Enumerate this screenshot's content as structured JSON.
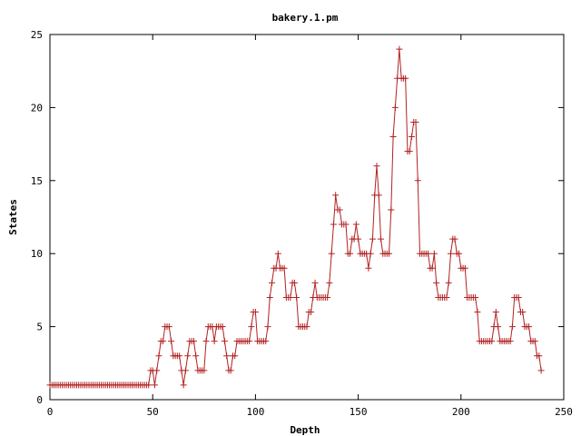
{
  "chart_data": {
    "type": "line",
    "title": "bakery.1.pm",
    "xlabel": "Depth",
    "ylabel": "States",
    "xlim": [
      0,
      250
    ],
    "ylim": [
      0,
      25
    ],
    "xticks": [
      0,
      50,
      100,
      150,
      200,
      250
    ],
    "yticks": [
      0,
      5,
      10,
      15,
      20,
      25
    ],
    "grid": false,
    "legend": "none",
    "marker": "plus",
    "color": "#b22222",
    "series": [
      {
        "x": [
          0,
          1,
          2,
          3,
          4,
          5,
          6,
          7,
          8,
          9,
          10,
          11,
          12,
          13,
          14,
          15,
          16,
          17,
          18,
          19,
          20,
          21,
          22,
          23,
          24,
          25,
          26,
          27,
          28,
          29,
          30,
          31,
          32,
          33,
          34,
          35,
          36,
          37,
          38,
          39,
          40,
          41,
          42,
          43,
          44,
          45,
          46,
          47,
          48,
          49,
          50,
          51,
          52,
          53,
          54,
          55,
          56,
          57,
          58,
          59,
          60,
          61,
          62,
          63,
          64,
          65,
          66,
          67,
          68,
          69,
          70,
          71,
          72,
          73,
          74,
          75,
          76,
          77,
          78,
          79,
          80,
          81,
          82,
          83,
          84,
          85,
          86,
          87,
          88,
          89,
          90,
          91,
          92,
          93,
          94,
          95,
          96,
          97,
          98,
          99,
          100,
          101,
          102,
          103,
          104,
          105,
          106,
          107,
          108,
          109,
          110,
          111,
          112,
          113,
          114,
          115,
          116,
          117,
          118,
          119,
          120,
          121,
          122,
          123,
          124,
          125,
          126,
          127,
          128,
          129,
          130,
          131,
          132,
          133,
          134,
          135,
          136,
          137,
          138,
          139,
          140,
          141,
          142,
          143,
          144,
          145,
          146,
          147,
          148,
          149,
          150,
          151,
          152,
          153,
          154,
          155,
          156,
          157,
          158,
          159,
          160,
          161,
          162,
          163,
          164,
          165,
          166,
          167,
          168,
          169,
          170,
          171,
          172,
          173,
          174,
          175,
          176,
          177,
          178,
          179,
          180,
          181,
          182,
          183,
          184,
          185,
          186,
          187,
          188,
          189,
          190,
          191,
          192,
          193,
          194,
          195,
          196,
          197,
          198,
          199,
          200,
          201,
          202,
          203,
          204,
          205,
          206,
          207,
          208,
          209,
          210,
          211,
          212,
          213,
          214,
          215,
          216,
          217,
          218,
          219,
          220,
          221,
          222,
          223,
          224,
          225,
          226,
          227,
          228,
          229,
          230,
          231,
          232,
          233,
          234,
          235,
          236,
          237,
          238,
          239
        ],
        "values": [
          1,
          1,
          1,
          1,
          1,
          1,
          1,
          1,
          1,
          1,
          1,
          1,
          1,
          1,
          1,
          1,
          1,
          1,
          1,
          1,
          1,
          1,
          1,
          1,
          1,
          1,
          1,
          1,
          1,
          1,
          1,
          1,
          1,
          1,
          1,
          1,
          1,
          1,
          1,
          1,
          1,
          1,
          1,
          1,
          1,
          1,
          1,
          1,
          1,
          2,
          2,
          1,
          2,
          3,
          4,
          4,
          5,
          5,
          5,
          4,
          3,
          3,
          3,
          3,
          2,
          1,
          2,
          3,
          4,
          4,
          4,
          3,
          2,
          2,
          2,
          2,
          4,
          5,
          5,
          5,
          4,
          5,
          5,
          5,
          5,
          4,
          3,
          2,
          2,
          3,
          3,
          4,
          4,
          4,
          4,
          4,
          4,
          4,
          5,
          6,
          6,
          4,
          4,
          4,
          4,
          4,
          5,
          7,
          8,
          9,
          9,
          10,
          9,
          9,
          9,
          7,
          7,
          7,
          8,
          8,
          7,
          5,
          5,
          5,
          5,
          5,
          6,
          6,
          7,
          8,
          7,
          7,
          7,
          7,
          7,
          7,
          8,
          10,
          12,
          14,
          13,
          13,
          12,
          12,
          12,
          10,
          10,
          11,
          11,
          12,
          11,
          10,
          10,
          10,
          10,
          9,
          10,
          11,
          14,
          16,
          14,
          11,
          10,
          10,
          10,
          10,
          13,
          18,
          20,
          22,
          24,
          22,
          22,
          22,
          17,
          17,
          18,
          19,
          19,
          15,
          10,
          10,
          10,
          10,
          10,
          9,
          9,
          10,
          8,
          7,
          7,
          7,
          7,
          7,
          8,
          10,
          11,
          11,
          10,
          10,
          9,
          9,
          9,
          7,
          7,
          7,
          7,
          7,
          6,
          4,
          4,
          4,
          4,
          4,
          4,
          4,
          5,
          6,
          5,
          4,
          4,
          4,
          4,
          4,
          4,
          5,
          7,
          7,
          7,
          6,
          6,
          5,
          5,
          5,
          4,
          4,
          4,
          3,
          3,
          2
        ]
      }
    ]
  }
}
